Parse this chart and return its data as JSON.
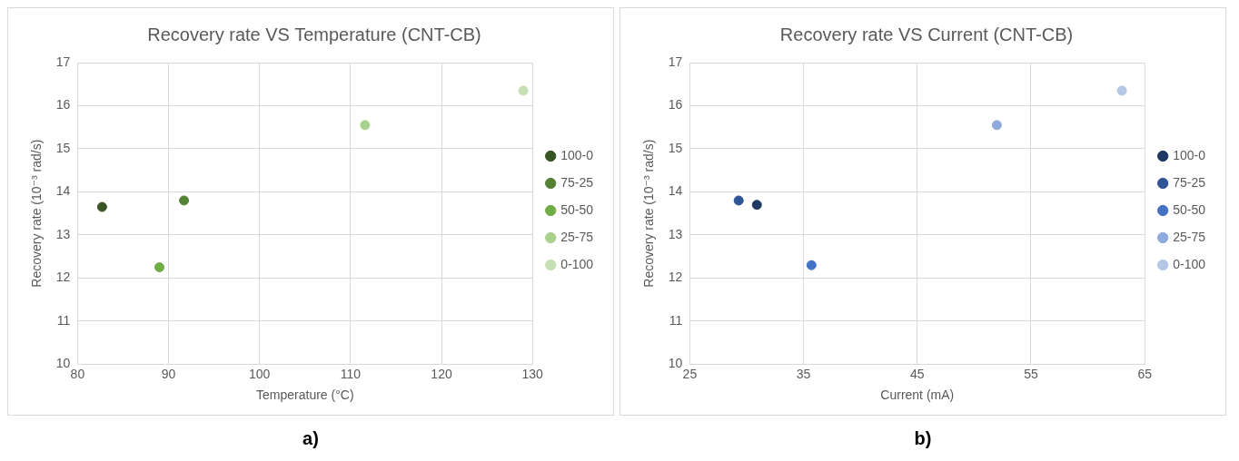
{
  "chart_data": [
    {
      "type": "scatter",
      "title": "Recovery rate VS Temperature (CNT-CB)",
      "xlabel": "Temperature (°C)",
      "ylabel": "Recovery rate (10⁻³ rad/s)",
      "annotations": [
        "a)"
      ],
      "xlim": [
        80,
        130
      ],
      "xticks": [
        80,
        90,
        100,
        110,
        120,
        130
      ],
      "ylim": [
        10,
        17
      ],
      "yticks": [
        10,
        11,
        12,
        13,
        14,
        15,
        16,
        17
      ],
      "grid": true,
      "legend": "right",
      "marker": "circle",
      "series": [
        {
          "name": "100-0",
          "color": "#375623",
          "x": [
            82.7
          ],
          "values": [
            13.65
          ]
        },
        {
          "name": "75-25",
          "color": "#548235",
          "x": [
            91.7
          ],
          "values": [
            13.8
          ]
        },
        {
          "name": "50-50",
          "color": "#70ad47",
          "x": [
            89.0
          ],
          "values": [
            12.25
          ]
        },
        {
          "name": "25-75",
          "color": "#a9d18e",
          "x": [
            111.6
          ],
          "values": [
            15.55
          ]
        },
        {
          "name": "0-100",
          "color": "#c5e0b4",
          "x": [
            129.0
          ],
          "values": [
            16.35
          ]
        }
      ]
    },
    {
      "type": "scatter",
      "title": "Recovery rate VS Current (CNT-CB)",
      "xlabel": "Current (mA)",
      "ylabel": "Recovery rate (10⁻³ rad/s)",
      "annotations": [
        "b)"
      ],
      "xlim": [
        25,
        65
      ],
      "xticks": [
        25,
        35,
        45,
        55,
        65
      ],
      "ylim": [
        10,
        17
      ],
      "yticks": [
        10,
        11,
        12,
        13,
        14,
        15,
        16,
        17
      ],
      "grid": true,
      "legend": "right",
      "marker": "circle",
      "series": [
        {
          "name": "100-0",
          "color": "#1f3864",
          "x": [
            30.9
          ],
          "values": [
            13.7
          ]
        },
        {
          "name": "75-25",
          "color": "#2f5597",
          "x": [
            29.3
          ],
          "values": [
            13.8
          ]
        },
        {
          "name": "50-50",
          "color": "#4472c4",
          "x": [
            35.7
          ],
          "values": [
            12.3
          ]
        },
        {
          "name": "25-75",
          "color": "#8faadc",
          "x": [
            52.0
          ],
          "values": [
            15.55
          ]
        },
        {
          "name": "0-100",
          "color": "#b4c7e7",
          "x": [
            63.0
          ],
          "values": [
            16.35
          ]
        }
      ]
    }
  ]
}
